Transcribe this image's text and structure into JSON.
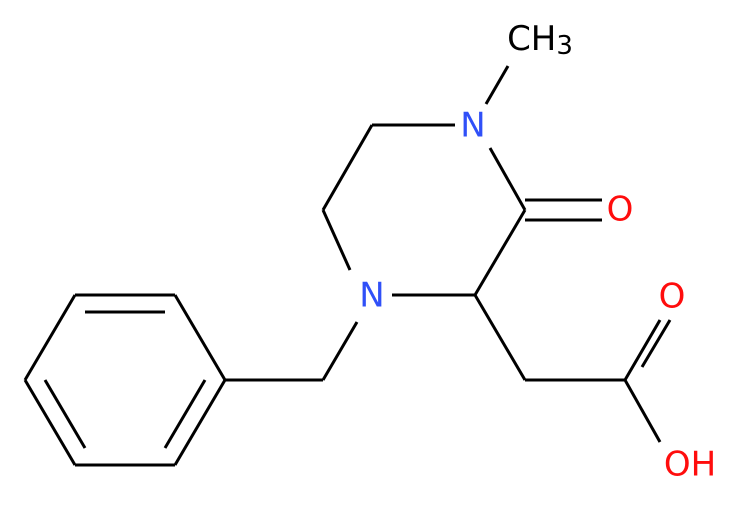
{
  "atoms": {
    "methyl": {
      "label": "CH",
      "subscript": "3"
    },
    "n_top": {
      "label": "N"
    },
    "o_ketone": {
      "label": "O"
    },
    "n_bottom": {
      "label": "N"
    },
    "o_acid": {
      "label": "O"
    },
    "oh_acid": {
      "label": "OH"
    }
  }
}
